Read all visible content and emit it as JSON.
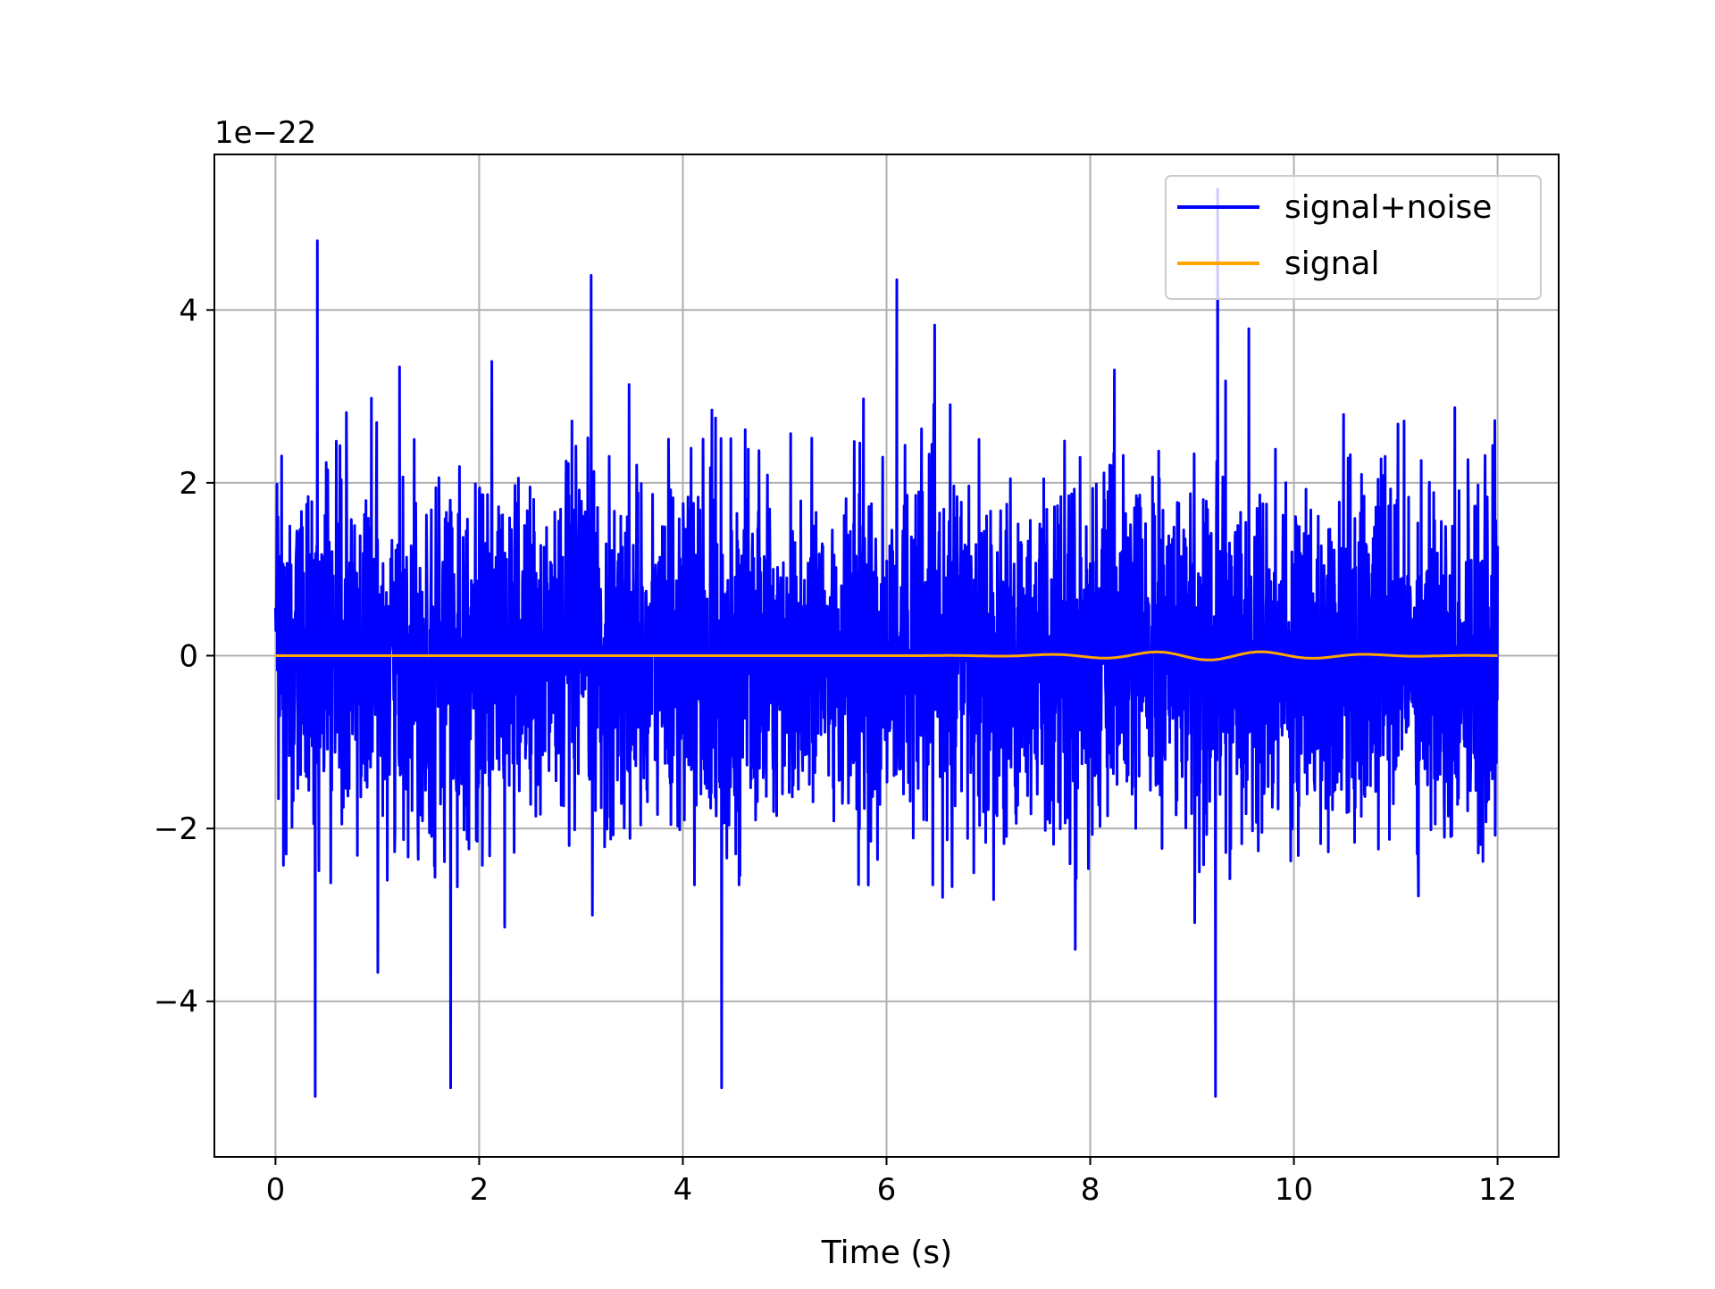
{
  "chart_data": {
    "type": "line",
    "title": "",
    "xlabel": "Time (s)",
    "ylabel": "",
    "y_offset_label": "1e−22",
    "xlim": [
      -0.6,
      12.6
    ],
    "ylim": [
      -5.8,
      5.8
    ],
    "x_ticks": [
      0,
      2,
      4,
      6,
      8,
      10,
      12
    ],
    "x_tick_labels": [
      "0",
      "2",
      "4",
      "6",
      "8",
      "10",
      "12"
    ],
    "y_ticks": [
      -4,
      -2,
      0,
      2,
      4
    ],
    "y_tick_labels": [
      "−4",
      "−2",
      "0",
      "2",
      "4"
    ],
    "grid": true,
    "legend_position": "top-right",
    "series": [
      {
        "name": "signal+noise",
        "color": "#0000ff",
        "x_range": [
          0,
          12
        ],
        "sample_count": 4000,
        "approx_std": 1.0,
        "approx_min": -5.1,
        "approx_max": 5.4,
        "notable_peaks": [
          {
            "x": 0.41,
            "y": 4.8
          },
          {
            "x": 0.39,
            "y": -5.1
          },
          {
            "x": 1.72,
            "y": -5.0
          },
          {
            "x": 3.1,
            "y": 4.4
          },
          {
            "x": 4.38,
            "y": -5.0
          },
          {
            "x": 6.1,
            "y": 4.35
          },
          {
            "x": 9.25,
            "y": 5.4
          },
          {
            "x": 9.23,
            "y": -5.1
          }
        ]
      },
      {
        "name": "signal",
        "color": "#ffa500",
        "x_range": [
          0,
          12
        ],
        "approx_max_abs": 0.05
      }
    ]
  }
}
